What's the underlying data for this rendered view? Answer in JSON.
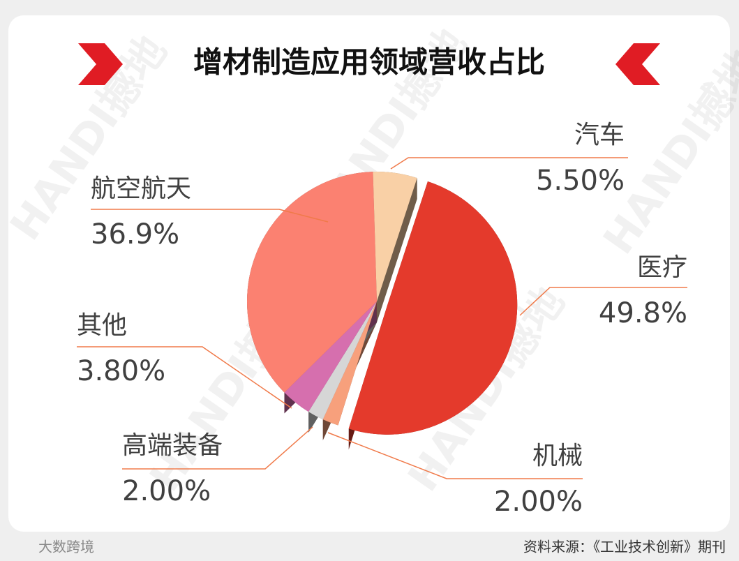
{
  "chart_data": {
    "type": "pie",
    "title": "增材制造应用领域营收占比",
    "categories": [
      "汽车",
      "医疗",
      "机械",
      "高端装备",
      "其他",
      "航空航天"
    ],
    "values": [
      5.5,
      49.8,
      2.0,
      2.0,
      3.8,
      36.9
    ],
    "value_labels": [
      "5.50%",
      "49.8%",
      "2.00%",
      "2.00%",
      "3.80%",
      "36.9%"
    ],
    "colors": [
      "#f9d0a6",
      "#e43a2c",
      "#f7a07c",
      "#d6d6d6",
      "#d66fae",
      "#fb8171"
    ],
    "source": "资料来源：《工业技术创新》期刊",
    "watermark": "HANDI撼地",
    "logo": "大数跨境"
  }
}
